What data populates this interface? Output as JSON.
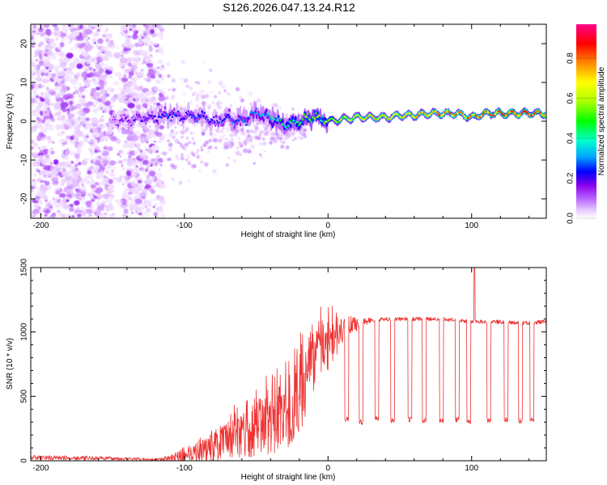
{
  "figure_title": "S126.2026.047.13.24.R12",
  "chart_data": [
    {
      "type": "heatmap",
      "title": "S126.2026.047.13.24.R12",
      "xlabel": "Height of straight line (km)",
      "ylabel": "Frequency (Hz)",
      "xlim": [
        -207,
        152
      ],
      "ylim": [
        -25,
        25
      ],
      "xticks": [
        -200,
        -100,
        0,
        100
      ],
      "xtick_labels": [
        "-200",
        "-100",
        "0",
        "100"
      ],
      "yticks": [
        20,
        10,
        0,
        -10,
        -20
      ],
      "ytick_labels": [
        "20",
        "10",
        "0",
        "-10",
        "-20"
      ],
      "colorbar": {
        "label": "Normalized spectral amplitude",
        "range": [
          0,
          0.97
        ],
        "ticks": [
          0.0,
          0.2,
          0.4,
          0.6,
          0.8
        ],
        "tick_labels": [
          "0.0",
          "0.2",
          "0.4",
          "0.6",
          "0.8"
        ],
        "colormap": [
          "#ffffff",
          "#e9ccff",
          "#bb66ff",
          "#8800ee",
          "#0000ff",
          "#00aaff",
          "#00ffcc",
          "#00ff00",
          "#aaff00",
          "#ffff00",
          "#ff8800",
          "#ff0000",
          "#ff0088"
        ]
      },
      "ridge": {
        "x": [
          -150,
          -135,
          -120,
          -110,
          -100,
          -90,
          -80,
          -70,
          -60,
          -50,
          -40,
          -30,
          -20,
          -10,
          0,
          10,
          20,
          30,
          40,
          50,
          60,
          70,
          80,
          90,
          100,
          110,
          120,
          130,
          140,
          150
        ],
        "freq": [
          0,
          0.5,
          1,
          2,
          1,
          1.5,
          0,
          1,
          0,
          2,
          1,
          -1,
          0,
          1,
          0,
          0.5,
          1,
          1,
          1,
          1.5,
          1.5,
          2,
          2,
          2,
          1,
          2,
          2,
          2,
          2,
          2
        ],
        "amplitude": [
          0.2,
          0.25,
          0.3,
          0.35,
          0.3,
          0.35,
          0.3,
          0.35,
          0.35,
          0.4,
          0.45,
          0.5,
          0.55,
          0.6,
          0.55,
          0.65,
          0.7,
          0.7,
          0.7,
          0.7,
          0.75,
          0.75,
          0.8,
          0.8,
          0.75,
          0.85,
          0.85,
          0.85,
          0.85,
          0.85
        ]
      }
    },
    {
      "type": "line",
      "xlabel": "Height of straight line (km)",
      "ylabel": "SNR (10 * v/v)",
      "xlim": [
        -207,
        152
      ],
      "ylim": [
        0,
        1500
      ],
      "xticks": [
        -200,
        -100,
        0,
        100
      ],
      "xtick_labels": [
        "-200",
        "-100",
        "0",
        "100"
      ],
      "yticks": [
        0,
        500,
        1000,
        1500
      ],
      "ytick_labels": [
        "0",
        "500",
        "1000",
        "1500"
      ],
      "color": "#ee3333",
      "series": [
        {
          "name": "SNR",
          "envelope": {
            "x": [
              -207,
              -160,
              -140,
              -120,
              -110,
              -100,
              -90,
              -80,
              -70,
              -60,
              -50,
              -40,
              -30,
              -20,
              -15,
              -10,
              -5,
              0,
              5,
              10,
              15,
              20,
              25,
              30,
              40,
              50,
              60,
              70,
              80,
              90,
              100,
              110,
              120,
              130,
              140,
              152
            ],
            "mean": [
              25,
              20,
              15,
              10,
              20,
              50,
              80,
              120,
              150,
              200,
              250,
              300,
              350,
              500,
              650,
              750,
              850,
              900,
              950,
              1000,
              1020,
              1050,
              1080,
              1090,
              1100,
              1100,
              1100,
              1100,
              1100,
              1090,
              1080,
              1080,
              1080,
              1070,
              1070,
              1080
            ],
            "noise": [
              20,
              15,
              12,
              8,
              20,
              60,
              90,
              130,
              150,
              180,
              220,
              250,
              280,
              300,
              280,
              250,
              220,
              200,
              150,
              100,
              70,
              50,
              30,
              25,
              25,
              25,
              25,
              25,
              25,
              25,
              25,
              25,
              25,
              25,
              25,
              25
            ]
          },
          "spike": {
            "x": 102,
            "value": 1500
          },
          "dropouts": {
            "x": [
              13,
              23,
              34,
              45,
              57,
              67,
              79,
              90,
              98,
              112,
              124,
              134,
              142
            ],
            "value": [
              320,
              300,
              330,
              310,
              320,
              310,
              310,
              320,
              300,
              310,
              320,
              310,
              320
            ]
          }
        }
      ]
    }
  ]
}
